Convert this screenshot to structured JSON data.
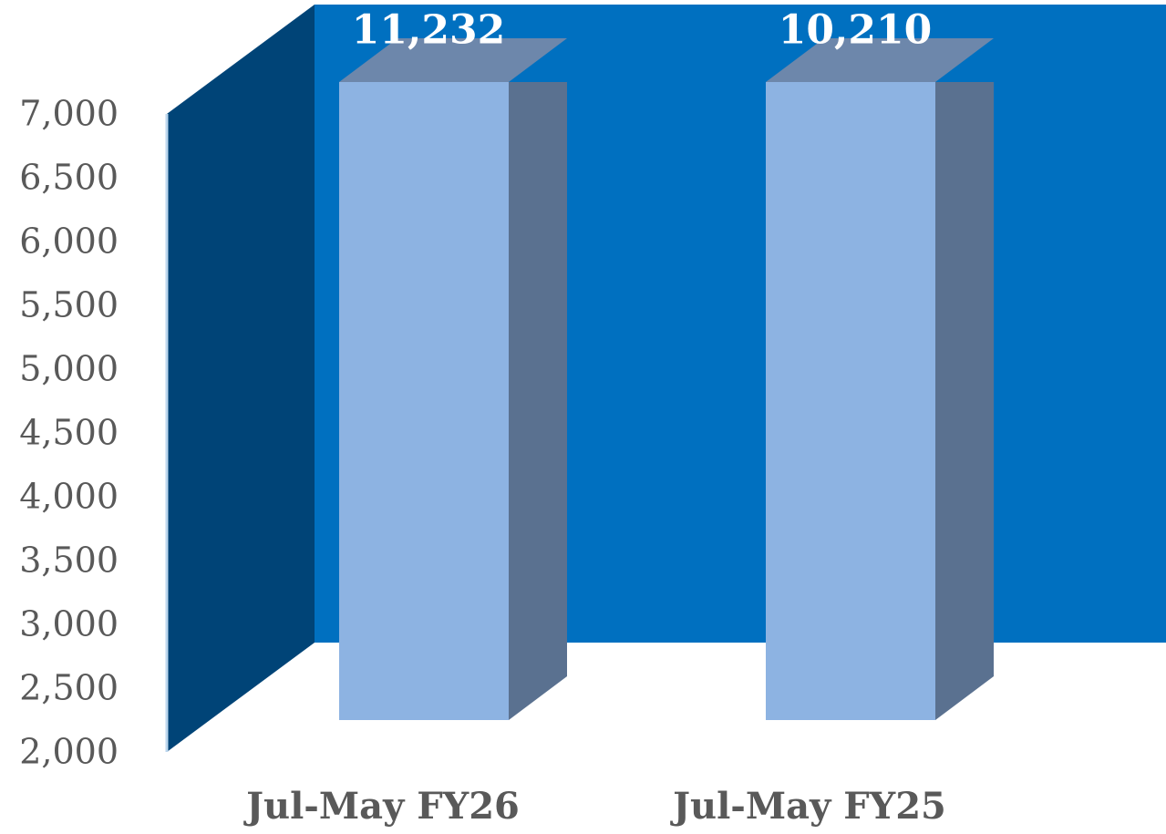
{
  "chart_data": {
    "type": "bar3d",
    "categories": [
      "Jul-May FY26",
      "Jul-May FY25"
    ],
    "values": [
      11232,
      10210
    ],
    "value_labels": [
      "11,232",
      "10,210"
    ],
    "color": "#8db3e2",
    "ylim": [
      2000,
      7000
    ],
    "yticks": [
      {
        "value": 2000,
        "label": "2,000"
      },
      {
        "value": 2500,
        "label": "2,500"
      },
      {
        "value": 3000,
        "label": "3,000"
      },
      {
        "value": 3500,
        "label": "3,500"
      },
      {
        "value": 4000,
        "label": "4,000"
      },
      {
        "value": 4500,
        "label": "4,500"
      },
      {
        "value": 5000,
        "label": "5,000"
      },
      {
        "value": 5500,
        "label": "5,500"
      },
      {
        "value": 6000,
        "label": "6,000"
      },
      {
        "value": 6500,
        "label": "6,500"
      },
      {
        "value": 7000,
        "label": "7,000"
      }
    ]
  }
}
